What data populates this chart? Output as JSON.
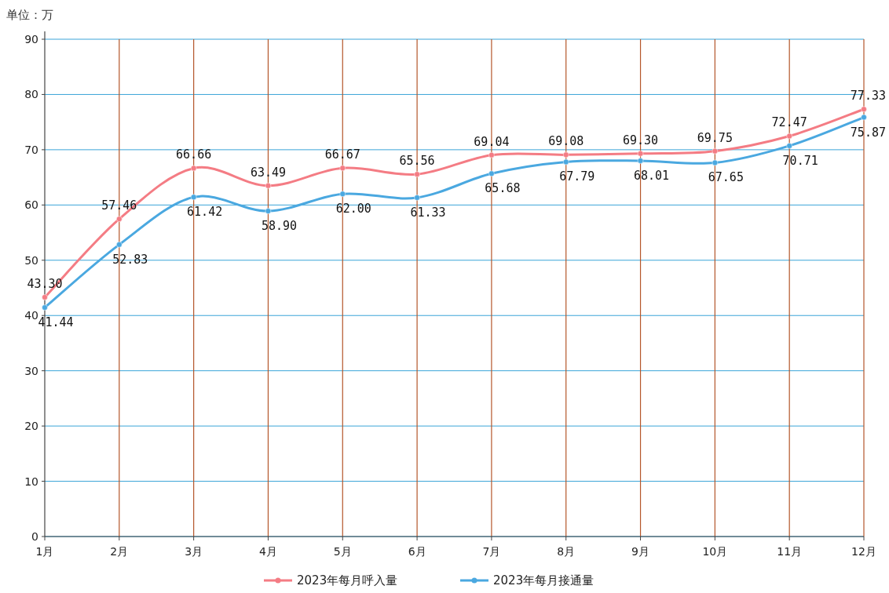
{
  "chart_data": {
    "type": "line",
    "ylabel": "单位：万",
    "categories": [
      "1月",
      "2月",
      "3月",
      "4月",
      "5月",
      "6月",
      "7月",
      "8月",
      "9月",
      "10月",
      "11月",
      "12月"
    ],
    "series": [
      {
        "name": "2023年每月呼入量",
        "color": "#f47c84",
        "values": [
          43.3,
          57.46,
          66.66,
          63.49,
          66.67,
          65.56,
          69.04,
          69.08,
          69.3,
          69.75,
          72.47,
          77.33
        ],
        "value_labels": [
          "43.30",
          "57.46",
          "66.66",
          "63.49",
          "66.67",
          "65.56",
          "69.04",
          "69.08",
          "69.30",
          "69.75",
          "72.47",
          "77.33"
        ]
      },
      {
        "name": "2023年每月接通量",
        "color": "#4aa8e0",
        "values": [
          41.44,
          52.83,
          61.42,
          58.9,
          62.0,
          61.33,
          65.68,
          67.79,
          68.01,
          67.65,
          70.71,
          75.87
        ],
        "value_labels": [
          "41.44",
          "52.83",
          "61.42",
          "58.90",
          "62.00",
          "61.33",
          "65.68",
          "67.79",
          "68.01",
          "67.65",
          "70.71",
          "75.87"
        ]
      }
    ],
    "ylim": [
      0,
      90
    ],
    "yticks": [
      0,
      10,
      20,
      30,
      40,
      50,
      60,
      70,
      80,
      90
    ],
    "grid": true,
    "legend": "bottom",
    "marker": "circle"
  }
}
